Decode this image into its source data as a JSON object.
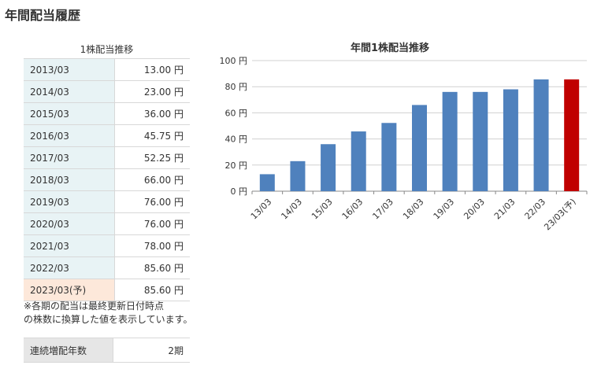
{
  "page_title": "年間配当履歴",
  "table": {
    "caption": "1株配当推移",
    "rows": [
      {
        "year": "2013/03",
        "value": "13.00 円"
      },
      {
        "year": "2014/03",
        "value": "23.00 円"
      },
      {
        "year": "2015/03",
        "value": "36.00 円"
      },
      {
        "year": "2016/03",
        "value": "45.75 円"
      },
      {
        "year": "2017/03",
        "value": "52.25 円"
      },
      {
        "year": "2018/03",
        "value": "66.00 円"
      },
      {
        "year": "2019/03",
        "value": "76.00 円"
      },
      {
        "year": "2020/03",
        "value": "76.00 円"
      },
      {
        "year": "2021/03",
        "value": "78.00 円"
      },
      {
        "year": "2022/03",
        "value": "85.60 円"
      },
      {
        "year": "2023/03(予)",
        "value": "85.60 円"
      }
    ]
  },
  "note_line1": "※各期の配当は最終更新日付時点",
  "note_line2": "の株数に換算した値を表示しています。",
  "streak": {
    "label": "連続増配年数",
    "value": "2期"
  },
  "chart_data": {
    "type": "bar",
    "title": "年間1株配当推移",
    "categories": [
      "13/03",
      "14/03",
      "15/03",
      "16/03",
      "17/03",
      "18/03",
      "19/03",
      "20/03",
      "21/03",
      "22/03",
      "23/03(予)"
    ],
    "values": [
      13.0,
      23.0,
      36.0,
      45.75,
      52.25,
      66.0,
      76.0,
      76.0,
      78.0,
      85.6,
      85.6
    ],
    "ylim": [
      0,
      100
    ],
    "yticks": [
      "0 円",
      "20 円",
      "40 円",
      "60 円",
      "80 円",
      "100 円"
    ],
    "grid": true,
    "colors": {
      "actual": "#4f81bd",
      "forecast": "#c00000"
    },
    "forecast_index": 10
  }
}
